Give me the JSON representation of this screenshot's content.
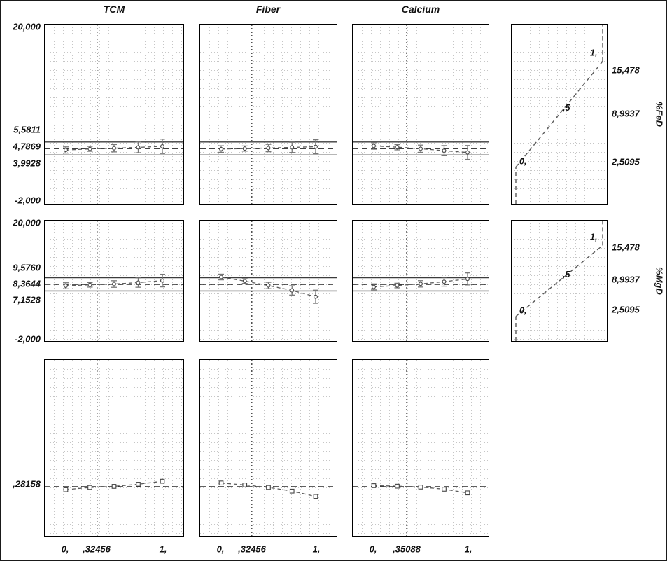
{
  "titles": [
    "TCM",
    "Fiber",
    "Calcium"
  ],
  "axes": {
    "row1_left": [
      "20,000",
      "5,5811",
      "4,7869",
      "3,9928",
      "-2,000"
    ],
    "row2_left": [
      "20,000",
      "9,5760",
      "8,3644",
      "7,1528",
      "-2,000"
    ],
    "row3_left": [
      ",28158"
    ],
    "row1_right": [
      "15,478",
      "8,9937",
      "2,5095"
    ],
    "row2_right": [
      "15,478",
      "8,9937",
      "2,5095"
    ],
    "right_titles": [
      "%FeD",
      "%MgD"
    ],
    "x_tcm": [
      "0,",
      ",32456",
      "1,"
    ],
    "x_fiber": [
      "0,",
      ",32456",
      "1,"
    ],
    "x_calcium": [
      "0,",
      ",35088",
      "1,"
    ]
  },
  "chart_data": [
    {
      "id": "fed-tcm",
      "type": "profile",
      "factor": "TCM",
      "response": "%FeD",
      "x": [
        0,
        0.25,
        0.5,
        0.75,
        1
      ],
      "values": [
        4.6,
        4.74,
        4.82,
        4.92,
        5.05
      ],
      "errors": [
        0.38,
        0.3,
        0.45,
        0.65,
        0.88
      ],
      "center_line": 4.7869,
      "upper_line": 5.5811,
      "lower_line": 3.9928,
      "current_x": 0.32456,
      "xlim": [
        0,
        1
      ],
      "ylim": [
        -2,
        20
      ]
    },
    {
      "id": "fed-fiber",
      "type": "profile",
      "factor": "Fiber",
      "response": "%FeD",
      "x": [
        0,
        0.25,
        0.5,
        0.75,
        1
      ],
      "values": [
        4.72,
        4.78,
        4.84,
        4.92,
        5.0
      ],
      "errors": [
        0.4,
        0.32,
        0.45,
        0.62,
        0.85
      ],
      "center_line": 4.7869,
      "upper_line": 5.5811,
      "lower_line": 3.9928,
      "current_x": 0.32456,
      "xlim": [
        0,
        1
      ],
      "ylim": [
        -2,
        20
      ]
    },
    {
      "id": "fed-calcium",
      "type": "profile",
      "factor": "Calcium",
      "response": "%FeD",
      "x": [
        0,
        0.25,
        0.5,
        0.75,
        1
      ],
      "values": [
        5.1,
        4.94,
        4.76,
        4.52,
        4.3
      ],
      "errors": [
        0.4,
        0.32,
        0.44,
        0.62,
        0.85
      ],
      "center_line": 4.7869,
      "upper_line": 5.5811,
      "lower_line": 3.9928,
      "current_x": 0.35088,
      "xlim": [
        0,
        1
      ],
      "ylim": [
        -2,
        20
      ]
    },
    {
      "id": "desirability-function-fed",
      "type": "desirability_function",
      "response": "%FeD",
      "desirability": [
        0,
        0.5,
        1
      ],
      "response_values": [
        2.5095,
        8.9937,
        15.478
      ],
      "point_labels": [
        "0,",
        ",5",
        "1,"
      ],
      "right_tick_labels": [
        "2,5095",
        "8,9937",
        "15,478"
      ],
      "ylim": [
        -2,
        20
      ]
    },
    {
      "id": "mgd-tcm",
      "type": "profile",
      "factor": "TCM",
      "response": "%MgD",
      "x": [
        0,
        0.25,
        0.5,
        0.75,
        1
      ],
      "values": [
        8.1,
        8.28,
        8.42,
        8.68,
        9.05
      ],
      "errors": [
        0.55,
        0.42,
        0.6,
        0.85,
        1.15
      ],
      "center_line": 8.3644,
      "upper_line": 9.576,
      "lower_line": 7.1528,
      "current_x": 0.32456,
      "xlim": [
        0,
        1
      ],
      "ylim": [
        -2,
        20
      ]
    },
    {
      "id": "mgd-fiber",
      "type": "profile",
      "factor": "Fiber",
      "response": "%MgD",
      "x": [
        0,
        0.25,
        0.5,
        0.75,
        1
      ],
      "values": [
        9.7,
        8.95,
        8.15,
        7.25,
        6.1
      ],
      "errors": [
        0.52,
        0.42,
        0.58,
        0.85,
        1.2
      ],
      "center_line": 8.3644,
      "upper_line": 9.576,
      "lower_line": 7.1528,
      "current_x": 0.32456,
      "xlim": [
        0,
        1
      ],
      "ylim": [
        -2,
        20
      ]
    },
    {
      "id": "mgd-calcium",
      "type": "profile",
      "factor": "Calcium",
      "response": "%MgD",
      "x": [
        0,
        0.25,
        0.5,
        0.75,
        1
      ],
      "values": [
        7.9,
        8.15,
        8.45,
        8.85,
        9.35
      ],
      "errors": [
        0.55,
        0.42,
        0.58,
        0.82,
        1.1
      ],
      "center_line": 8.3644,
      "upper_line": 9.576,
      "lower_line": 7.1528,
      "current_x": 0.35088,
      "xlim": [
        0,
        1
      ],
      "ylim": [
        -2,
        20
      ]
    },
    {
      "id": "desirability-function-mgd",
      "type": "desirability_function",
      "response": "%MgD",
      "desirability": [
        0,
        0.5,
        1
      ],
      "response_values": [
        2.5095,
        8.9937,
        15.478
      ],
      "point_labels": [
        "0,",
        ",5",
        "1,"
      ],
      "right_tick_labels": [
        "2,5095",
        "8,9937",
        "15,478"
      ],
      "ylim": [
        -2,
        20
      ]
    },
    {
      "id": "desirability-tcm",
      "type": "desirability_profile",
      "factor": "TCM",
      "x": [
        0,
        0.25,
        0.5,
        0.75,
        1
      ],
      "values": [
        0.265,
        0.278,
        0.284,
        0.296,
        0.313
      ],
      "center_line": 0.28158,
      "current_x": 0.32456,
      "xlim": [
        0,
        1
      ],
      "ylim": [
        0,
        1
      ]
    },
    {
      "id": "desirability-fiber",
      "type": "desirability_profile",
      "factor": "Fiber",
      "x": [
        0,
        0.25,
        0.5,
        0.75,
        1
      ],
      "values": [
        0.303,
        0.292,
        0.278,
        0.257,
        0.227
      ],
      "center_line": 0.28158,
      "current_x": 0.32456,
      "xlim": [
        0,
        1
      ],
      "ylim": [
        0,
        1
      ]
    },
    {
      "id": "desirability-calcium",
      "type": "desirability_profile",
      "factor": "Calcium",
      "x": [
        0,
        0.25,
        0.5,
        0.75,
        1
      ],
      "values": [
        0.288,
        0.285,
        0.28,
        0.268,
        0.247
      ],
      "center_line": 0.28158,
      "current_x": 0.35088,
      "xlim": [
        0,
        1
      ],
      "ylim": [
        0,
        1
      ]
    }
  ]
}
